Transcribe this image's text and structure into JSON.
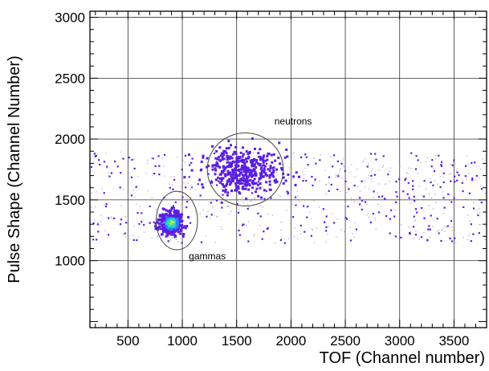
{
  "chart_data": {
    "type": "heatmap",
    "title": "",
    "xlabel": "TOF (Channel number)",
    "ylabel": "Pulse Shape (Channel Number)",
    "xlim": [
      150,
      3800
    ],
    "ylim": [
      450,
      3050
    ],
    "xticks": [
      500,
      1000,
      1500,
      2000,
      2500,
      3000,
      3500
    ],
    "yticks": [
      1000,
      1500,
      2000,
      2500,
      3000
    ],
    "xtick_labels": [
      "500",
      "1000",
      "1500",
      "2000",
      "2500",
      "3000",
      "3500"
    ],
    "ytick_labels": [
      "1000",
      "1500",
      "2000",
      "2500",
      "3000"
    ],
    "grid": true,
    "colormap": [
      "#5b1fe0",
      "#2a7fff",
      "#22c8e8",
      "#3fe08a",
      "#d8e63a"
    ],
    "clusters": [
      {
        "name": "gammas",
        "x_center": 900,
        "y_center": 1310,
        "x_spread": 55,
        "y_spread": 45,
        "peak": 1.0
      },
      {
        "name": "neutrons",
        "x_center": 1560,
        "y_center": 1740,
        "x_spread": 170,
        "y_spread": 90,
        "peak": 0.22
      }
    ],
    "background_band": {
      "x_range": [
        150,
        3800
      ],
      "y_range": [
        1150,
        1900
      ],
      "level": "sparse"
    },
    "annotations": [
      {
        "label": "neutrons",
        "ellipse_center": [
          1580,
          1750
        ],
        "ellipse_radii": [
          350,
          300
        ],
        "label_at": [
          2020,
          2120
        ]
      },
      {
        "label": "gammas",
        "ellipse_center": [
          950,
          1330
        ],
        "ellipse_radii": [
          190,
          240
        ],
        "label_at": [
          1230,
          1010
        ]
      }
    ]
  }
}
